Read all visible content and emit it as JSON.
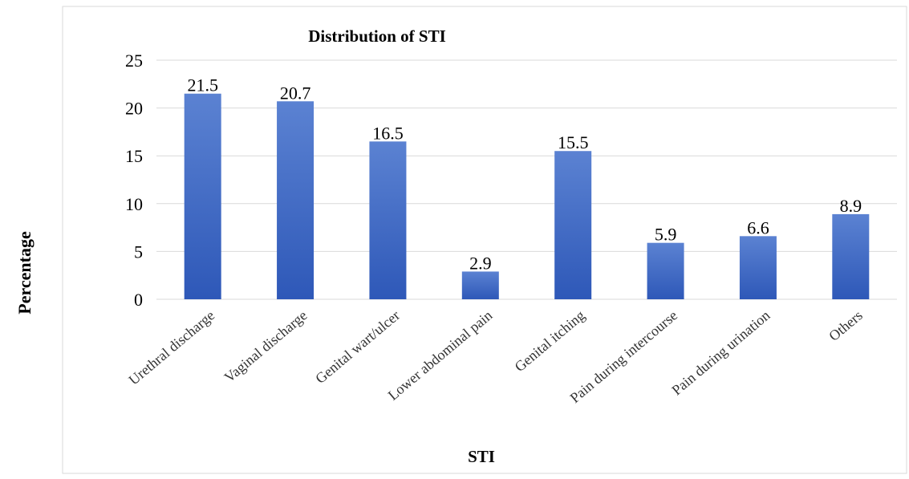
{
  "chart_data": {
    "type": "bar",
    "title": "Distribution of STI",
    "xlabel": "STI",
    "ylabel": "Percentage",
    "categories": [
      "Urethral discharge",
      "Vaginal discharge",
      "Genital wart/ulcer",
      "Lower abdominal pain",
      "Genital itching",
      "Pain during intercourse",
      "Pain during urination",
      "Others"
    ],
    "values": [
      21.5,
      20.7,
      16.5,
      2.9,
      15.5,
      5.9,
      6.6,
      8.9
    ],
    "data_labels": [
      "21.5",
      "20.7",
      "16.5",
      "2.9",
      "15.5",
      "5.9",
      "6.6",
      "8.9"
    ],
    "ylim": [
      0,
      25
    ],
    "yticks": [
      0,
      5,
      10,
      15,
      20,
      25
    ],
    "grid": true,
    "legend": "none",
    "colors": {
      "bar_top": "#5b82d2",
      "bar_bottom": "#2e58b8",
      "grid": "#d9d9d9",
      "frame": "#d9d9d9",
      "text": "#000000"
    }
  }
}
